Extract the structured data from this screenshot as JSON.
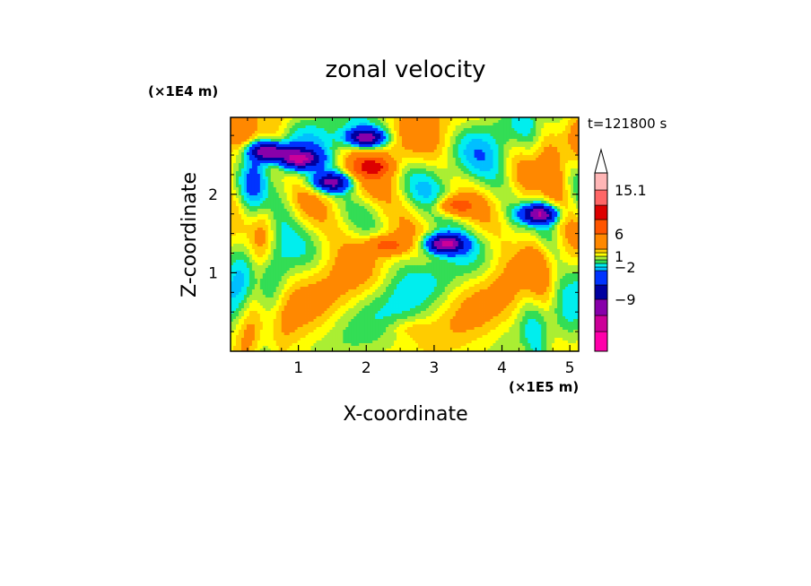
{
  "chart_data": {
    "type": "heatmap",
    "title": "zonal velocity",
    "xlabel": "X-coordinate",
    "ylabel": "Z-coordinate",
    "x_unit": "(×1E5 m)",
    "y_unit": "(×1E4 m)",
    "time_label": "t=121800 s",
    "xlim": [
      0,
      5.13
    ],
    "ylim": [
      0,
      2.98
    ],
    "x_ticks": [
      1,
      2,
      3,
      4,
      5
    ],
    "y_ticks": [
      1,
      2
    ],
    "colorbar": {
      "levels": [
        -15,
        -12,
        -9,
        -6,
        -3,
        -2,
        -1,
        0,
        1,
        2,
        3,
        6,
        9,
        12,
        15.1
      ],
      "colors": [
        "#ff00aa",
        "#cc0099",
        "#8800aa",
        "#0000a0",
        "#0033ff",
        "#00bfff",
        "#00eeee",
        "#33dd55",
        "#aaee33",
        "#ffff00",
        "#ffcc00",
        "#ff8800",
        "#ff5500",
        "#dd0000",
        "#ff6666",
        "#ffb6b6"
      ],
      "tick_labels": [
        "15.1",
        "6",
        "1",
        "-2",
        "-9"
      ],
      "tick_values": [
        15.1,
        6,
        1,
        -2,
        -9
      ]
    },
    "features": [
      {
        "x": 2.0,
        "z": 2.72,
        "value": -12,
        "kind": "jet core"
      },
      {
        "x": 3.15,
        "z": 1.37,
        "value": -12,
        "kind": "jet core"
      },
      {
        "x": 0.55,
        "z": 2.55,
        "value": -12,
        "kind": "jet core"
      },
      {
        "x": 1.0,
        "z": 2.45,
        "value": -11,
        "kind": "jet core"
      },
      {
        "x": 1.5,
        "z": 2.15,
        "value": -10,
        "kind": "jet core"
      },
      {
        "x": 2.1,
        "z": 2.35,
        "value": 7,
        "kind": "positive band"
      },
      {
        "x": 2.3,
        "z": 1.35,
        "value": 7,
        "kind": "positive band"
      },
      {
        "x": 3.3,
        "z": 1.85,
        "value": 7,
        "kind": "positive band"
      },
      {
        "x": 4.55,
        "z": 1.75,
        "value": -11,
        "kind": "jet core"
      },
      {
        "x": 2.6,
        "z": 0.3,
        "value": 2.5,
        "kind": "near-surface"
      }
    ]
  }
}
